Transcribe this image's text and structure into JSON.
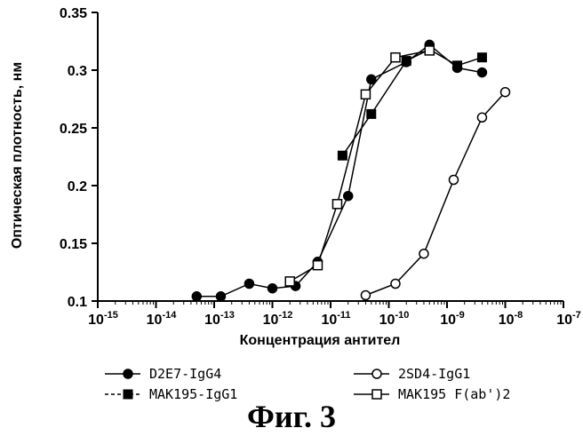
{
  "chart_data": {
    "type": "line",
    "ylabel": "Оптическая плотность, нм",
    "xlabel": "Концентрация антител",
    "xscale": "log",
    "xlim": [
      1e-15,
      1e-07
    ],
    "ylim": [
      0.1,
      0.35
    ],
    "x_ticks": [
      {
        "base": "10",
        "exp": "-15",
        "value": 1e-15
      },
      {
        "base": "10",
        "exp": "-14",
        "value": 1e-14
      },
      {
        "base": "10",
        "exp": "-13",
        "value": 1e-13
      },
      {
        "base": "10",
        "exp": "-12",
        "value": 1e-12
      },
      {
        "base": "10",
        "exp": "-11",
        "value": 1e-11
      },
      {
        "base": "10",
        "exp": "-10",
        "value": 1e-10
      },
      {
        "base": "10",
        "exp": "-9",
        "value": 1e-09
      },
      {
        "base": "10",
        "exp": "-8",
        "value": 1e-08
      },
      {
        "base": "10",
        "exp": "-7",
        "value": 1e-07
      }
    ],
    "y_ticks": [
      {
        "label": "0.1",
        "value": 0.1
      },
      {
        "label": "0.15",
        "value": 0.15
      },
      {
        "label": "0.2",
        "value": 0.2
      },
      {
        "label": "0.25",
        "value": 0.25
      },
      {
        "label": "0.3",
        "value": 0.3
      },
      {
        "label": "0.35",
        "value": 0.35
      }
    ],
    "legend_position": "bottom",
    "series": [
      {
        "name": "D2E7-IgG4",
        "marker": "filled-circle",
        "line": "solid",
        "points": [
          [
            5e-14,
            0.104
          ],
          [
            1.3e-13,
            0.104
          ],
          [
            4e-13,
            0.115
          ],
          [
            1e-12,
            0.111
          ],
          [
            2.5e-12,
            0.113
          ],
          [
            6e-12,
            0.134
          ],
          [
            2e-11,
            0.191
          ],
          [
            5e-11,
            0.292
          ],
          [
            2e-10,
            0.307
          ],
          [
            5e-10,
            0.322
          ],
          [
            1.5e-09,
            0.302
          ],
          [
            4e-09,
            0.298
          ]
        ]
      },
      {
        "name": "MAK195-IgG1",
        "marker": "filled-square",
        "line": "dashed",
        "points": [
          [
            1.6e-11,
            0.226
          ],
          [
            5e-11,
            0.262
          ],
          [
            2e-10,
            0.308
          ],
          [
            5e-10,
            0.318
          ],
          [
            1.5e-09,
            0.304
          ],
          [
            4e-09,
            0.311
          ]
        ]
      },
      {
        "name": "2SD4-IgG1",
        "marker": "open-circle",
        "line": "solid",
        "points": [
          [
            4e-11,
            0.105
          ],
          [
            1.3e-10,
            0.115
          ],
          [
            4e-10,
            0.141
          ],
          [
            1.3e-09,
            0.205
          ],
          [
            4e-09,
            0.259
          ],
          [
            1e-08,
            0.281
          ]
        ]
      },
      {
        "name": "MAK195 F(ab')2",
        "marker": "open-square",
        "line": "solid",
        "points": [
          [
            2e-12,
            0.117
          ],
          [
            6e-12,
            0.131
          ],
          [
            1.3e-11,
            0.184
          ],
          [
            4e-11,
            0.279
          ],
          [
            1.3e-10,
            0.311
          ],
          [
            5e-10,
            0.317
          ]
        ]
      }
    ]
  },
  "caption": "Фиг. 3",
  "colors": {
    "ink": "#000000",
    "background": "#ffffff"
  }
}
